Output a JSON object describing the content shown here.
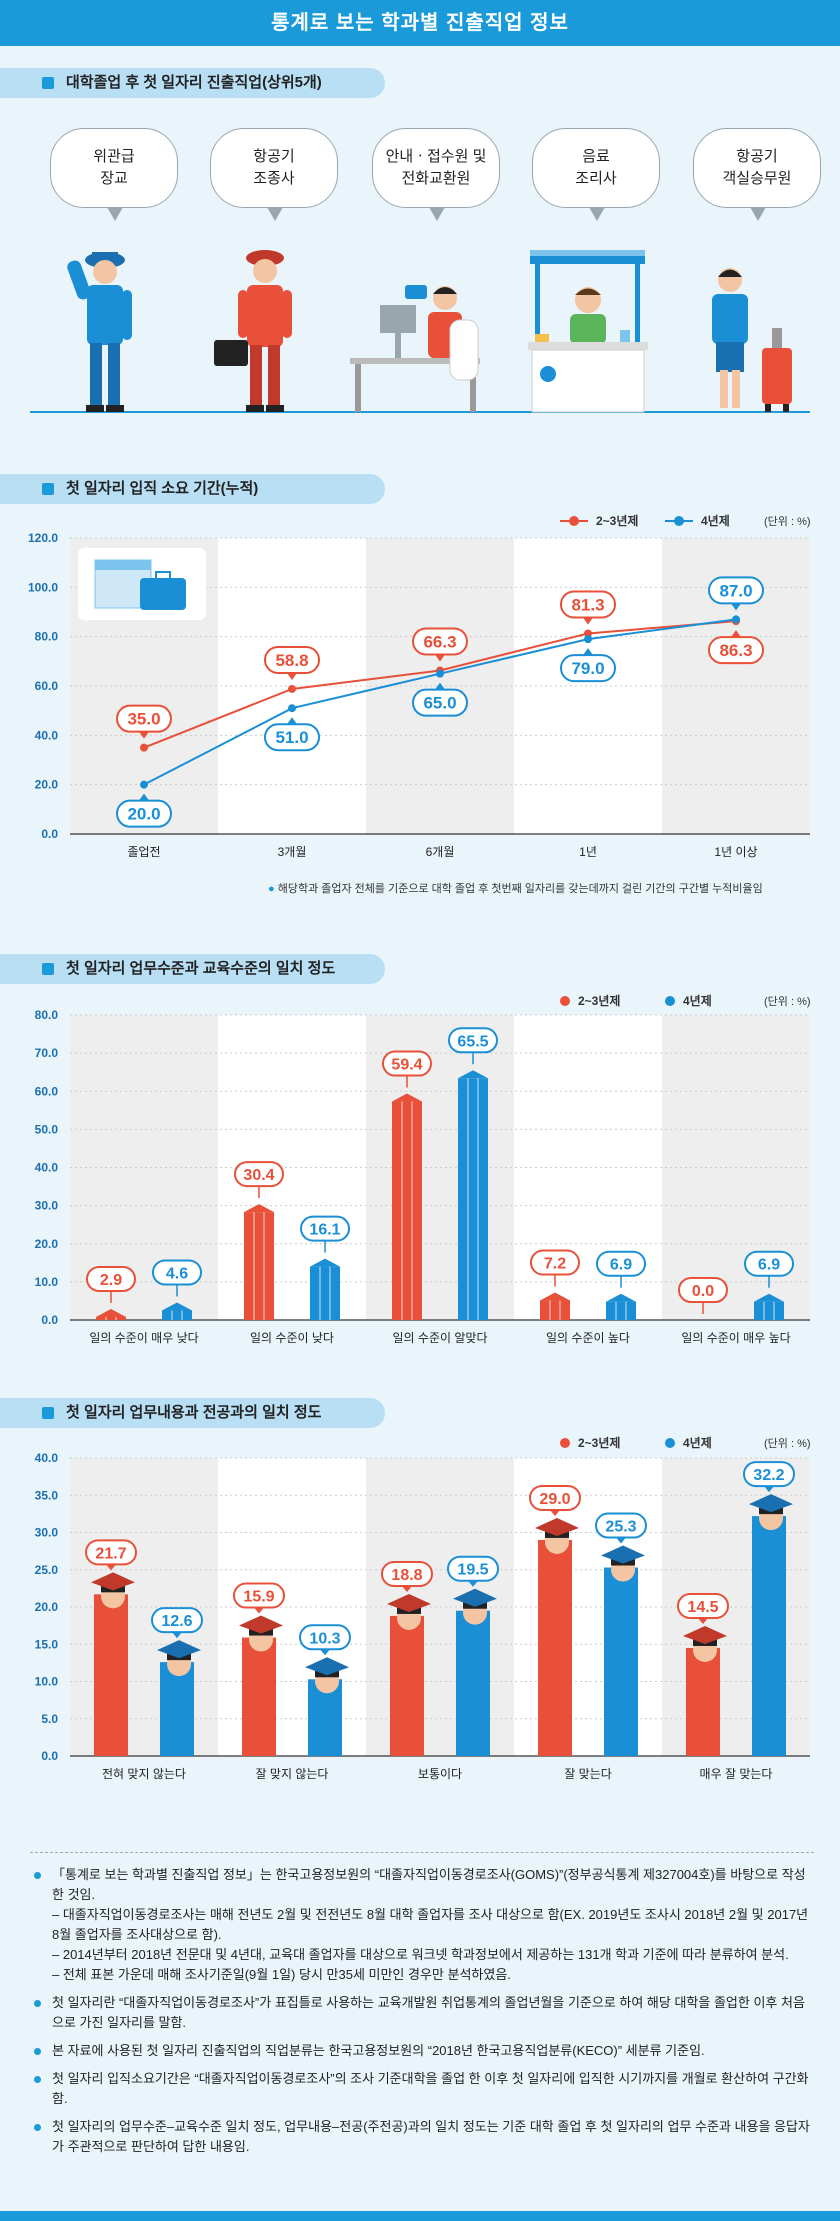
{
  "header": {
    "title": "통계로 보는 학과별 진출직업 정보"
  },
  "section1": {
    "title": "대학졸업 후 첫 일자리 진출직업(상위5개)",
    "jobs": [
      "위관급\n장교",
      "항공기\n조종사",
      "안내ㆍ접수원 및\n전화교환원",
      "음료\n조리사",
      "항공기\n객실승무원"
    ]
  },
  "section2": {
    "title": "첫 일자리 입직 소요 기간(누적)",
    "legend": [
      "2~3년제",
      "4년제"
    ],
    "unit": "(단위 : %)",
    "note": "해당학과 졸업자 전체를 기준으로 대학 졸업 후 첫번째 일자리를 갖는데까지 걸린 기간의 구간별 누적비율임"
  },
  "section3": {
    "title": "첫 일자리 업무수준과 교육수준의 일치 정도",
    "legend": [
      "2~3년제",
      "4년제"
    ],
    "unit": "(단위 : %)"
  },
  "section4": {
    "title": "첫 일자리 업무내용과 전공과의 일치 정도",
    "legend": [
      "2~3년제",
      "4년제"
    ],
    "unit": "(단위 : %)"
  },
  "colors": {
    "red": "#e8503a",
    "blue": "#1a8fd6",
    "accent": "#1a9ad8"
  },
  "chart_data": [
    {
      "type": "line",
      "categories": [
        "졸업전",
        "3개월",
        "6개월",
        "1년",
        "1년 이상"
      ],
      "series": [
        {
          "name": "2~3년제",
          "values": [
            35.0,
            58.8,
            66.3,
            81.3,
            86.3
          ]
        },
        {
          "name": "4년제",
          "values": [
            20.0,
            51.0,
            65.0,
            79.0,
            87.0
          ]
        }
      ],
      "y_ticks": [
        "0.0",
        "20.0",
        "40.0",
        "60.0",
        "80.0",
        "100.0",
        "120.0"
      ],
      "ylim": [
        0,
        120
      ]
    },
    {
      "type": "bar",
      "categories": [
        "일의 수준이 매우 낮다",
        "일의 수준이 낮다",
        "일의 수준이 알맞다",
        "일의 수준이 높다",
        "일의 수준이 매우 높다"
      ],
      "series": [
        {
          "name": "2~3년제",
          "values": [
            2.9,
            30.4,
            59.4,
            7.2,
            0.0
          ]
        },
        {
          "name": "4년제",
          "values": [
            4.6,
            16.1,
            65.5,
            6.9,
            6.9
          ]
        }
      ],
      "y_ticks": [
        "0.0",
        "10.0",
        "20.0",
        "30.0",
        "40.0",
        "50.0",
        "60.0",
        "70.0",
        "80.0"
      ],
      "ylim": [
        0,
        80
      ]
    },
    {
      "type": "bar",
      "categories": [
        "전혀 맞지 않는다",
        "잘 맞지 않는다",
        "보통이다",
        "잘 맞는다",
        "매우 잘 맞는다"
      ],
      "series": [
        {
          "name": "2~3년제",
          "values": [
            21.7,
            15.9,
            18.8,
            29.0,
            14.5
          ]
        },
        {
          "name": "4년제",
          "values": [
            12.6,
            10.3,
            19.5,
            25.3,
            32.2
          ]
        }
      ],
      "y_ticks": [
        "0.0",
        "5.0",
        "10.0",
        "15.0",
        "20.0",
        "25.0",
        "30.0",
        "35.0",
        "40.0"
      ],
      "ylim": [
        0,
        40
      ]
    }
  ],
  "notes": [
    {
      "main": "「통계로 보는 학과별 진출직업 정보」는 한국고용정보원의 “대졸자직업이동경로조사(GOMS)”(정부공식통계 제327004호)를 바탕으로 작성한 것임.",
      "subs": [
        "– 대졸자직업이동경로조사는 매해 전년도 2월 및 전전년도 8월 대학 졸업자를 조사 대상으로 함(EX. 2019년도 조사시 2018년 2월 및 2017년 8월 졸업자를 조사대상으로 함).",
        "– 2014년부터 2018년 전문대 및 4년대, 교육대 졸업자를 대상으로 워크넷 학과정보에서 제공하는 131개 학과 기준에 따라 분류하여 분석.",
        "– 전체 표본 가운데 매해 조사기준일(9월 1일) 당시 만35세 미만인 경우만 분석하였음."
      ]
    },
    {
      "main": "첫 일자리란 “대졸자직업이동경로조사”가 표집틀로 사용하는 교육개발원 취업통계의 졸업년월을 기준으로 하여 해당 대학을 졸업한 이후 처음으로 가진 일자리를 말함.",
      "subs": []
    },
    {
      "main": "본 자료에 사용된 첫 일자리 진출직업의 직업분류는 한국고용정보원의 “2018년 한국고용직업분류(KECO)” 세분류 기준임.",
      "subs": []
    },
    {
      "main": "첫 일자리 입직소요기간은 “대졸자직업이동경로조사”의 조사 기준대학을 졸업 한 이후 첫 일자리에 입직한 시기까지를 개월로 환산하여 구간화함.",
      "subs": []
    },
    {
      "main": "첫 일자리의 업무수준–교육수준 일치 정도, 업무내용–전공(주전공)과의 일치 정도는 기준 대학 졸업 후 첫 일자리의 업무 수준과 내용을 응답자가 주관적으로 판단하여 답한 내용임.",
      "subs": []
    }
  ]
}
